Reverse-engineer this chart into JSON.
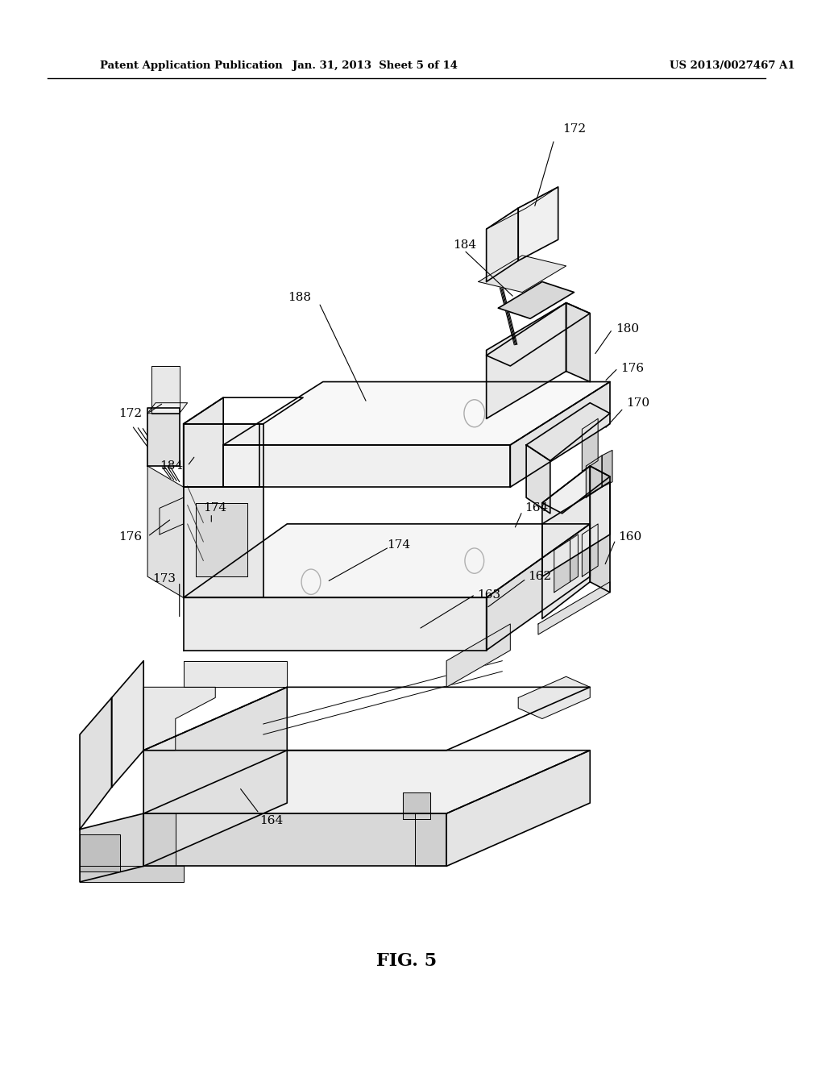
{
  "background_color": "#ffffff",
  "header_left": "Patent Application Publication",
  "header_center": "Jan. 31, 2013  Sheet 5 of 14",
  "header_right": "US 2013/0027467 A1",
  "figure_label": "FIG. 5",
  "page_width": 10.24,
  "page_height": 13.2,
  "dpi": 100
}
